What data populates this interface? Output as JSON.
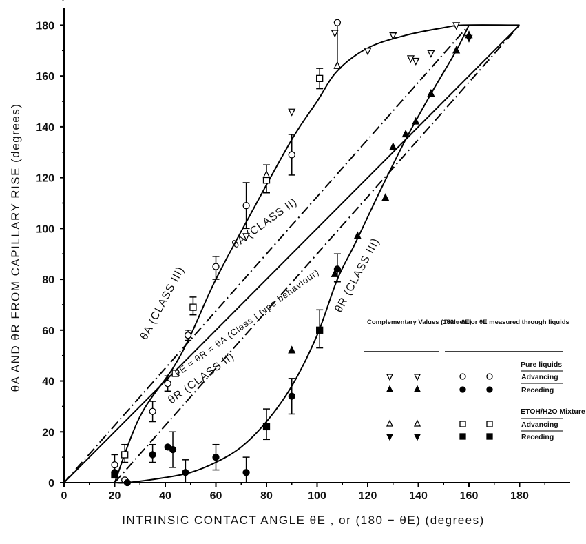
{
  "chart_data": {
    "type": "scatter",
    "xlabel": "INTRINSIC CONTACT ANGLE θE , or (180 − θE) (degrees)",
    "ylabel": "θA AND θR FROM CAPILLARY RISE (degrees)",
    "xlim": [
      0,
      200
    ],
    "ylim": [
      0,
      185
    ],
    "xticks": [
      "0",
      "20",
      "40",
      "60",
      "80",
      "100",
      "120",
      "140",
      "160",
      "180"
    ],
    "yticks": [
      "0",
      "20",
      "40",
      "60",
      "80",
      "100",
      "120",
      "140",
      "160",
      "180"
    ],
    "grid": false,
    "curve_labels": [
      "θA (CLASS III)",
      "θA (CLASS II)",
      "θE = θR = θA (Class I type behaviour)",
      "θR (CLASS II)",
      "θR (CLASS III)"
    ],
    "lines": [
      {
        "name": "θE = θR = θA (Class I type behaviour)",
        "style": "solid",
        "x": [
          0,
          180
        ],
        "y": [
          0,
          180
        ]
      },
      {
        "name": "θA (CLASS II)",
        "style": "dashdot",
        "x": [
          0,
          160
        ],
        "y": [
          0,
          180
        ]
      },
      {
        "name": "θR (CLASS II)",
        "style": "dashdot",
        "x": [
          20,
          180
        ],
        "y": [
          0,
          180
        ]
      },
      {
        "name": "θA (CLASS III)",
        "style": "solid",
        "x": [
          20,
          30,
          43,
          50,
          60,
          75,
          90,
          100,
          108,
          120,
          135,
          150,
          158,
          180
        ],
        "y": [
          0,
          26,
          45,
          58,
          80,
          108,
          135,
          150,
          162,
          171,
          176,
          179,
          180,
          180
        ]
      },
      {
        "name": "θR (CLASS III)",
        "style": "solid",
        "x": [
          20,
          25,
          40,
          50,
          60,
          70,
          80,
          90,
          100,
          108,
          115,
          125,
          135,
          145,
          155,
          160
        ],
        "y": [
          0,
          0,
          2,
          4,
          8,
          14,
          24,
          38,
          58,
          80,
          94,
          115,
          135,
          153,
          170,
          180
        ]
      }
    ],
    "series": [
      {
        "name": "Pure liquids Advancing",
        "marker": "open-circle",
        "points": [
          [
            20,
            7
          ],
          [
            24,
            1
          ],
          [
            35,
            28
          ],
          [
            41,
            39
          ],
          [
            49,
            58
          ],
          [
            60,
            85
          ],
          [
            72,
            109
          ],
          [
            90,
            129
          ],
          [
            108,
            181
          ]
        ]
      },
      {
        "name": "Pure liquids Receding",
        "marker": "filled-circle",
        "points": [
          [
            20,
            4
          ],
          [
            25,
            0
          ],
          [
            35,
            11
          ],
          [
            41,
            14
          ],
          [
            43,
            13
          ],
          [
            48,
            4
          ],
          [
            60,
            10
          ],
          [
            72,
            4
          ],
          [
            90,
            34
          ],
          [
            108,
            84
          ]
        ]
      },
      {
        "name": "ETOH/H2O Mixture Advancing",
        "marker": "open-square",
        "points": [
          [
            24,
            11
          ],
          [
            44,
            43
          ],
          [
            51,
            69
          ],
          [
            80,
            119
          ],
          [
            101,
            159
          ]
        ]
      },
      {
        "name": "ETOH/H2O Mixture Receding",
        "marker": "filled-square",
        "points": [
          [
            20,
            3
          ],
          [
            80,
            22
          ],
          [
            101,
            60
          ]
        ]
      },
      {
        "name": "Complementary Advancing (open down triangle)",
        "marker": "open-triangle-down",
        "points": [
          [
            72,
            97
          ],
          [
            90,
            146
          ],
          [
            107,
            177
          ],
          [
            120,
            170
          ],
          [
            130,
            176
          ],
          [
            137,
            167
          ],
          [
            139,
            166
          ],
          [
            145,
            169
          ],
          [
            155,
            180
          ]
        ]
      },
      {
        "name": "Complementary Receding (filled up triangle)",
        "marker": "filled-triangle-up",
        "points": [
          [
            90,
            52
          ],
          [
            107,
            82
          ],
          [
            116,
            97
          ],
          [
            127,
            112
          ],
          [
            130,
            132
          ],
          [
            135,
            137
          ],
          [
            139,
            142
          ],
          [
            145,
            153
          ],
          [
            155,
            170
          ],
          [
            160,
            176
          ]
        ]
      },
      {
        "name": "Complementary Advancing (open up triangle)",
        "marker": "open-triangle-up",
        "points": [
          [
            80,
            121
          ],
          [
            108,
            164
          ]
        ]
      },
      {
        "name": "Complementary Receding (filled down triangle)",
        "marker": "filled-triangle-down",
        "points": [
          [
            160,
            175
          ]
        ]
      }
    ],
    "error_bars": [
      {
        "x": 20,
        "y": 7,
        "lo": 3,
        "hi": 11
      },
      {
        "x": 24,
        "y": 11,
        "lo": 8,
        "hi": 15
      },
      {
        "x": 35,
        "y": 28,
        "lo": 24,
        "hi": 32
      },
      {
        "x": 35,
        "y": 11,
        "lo": 8,
        "hi": 15
      },
      {
        "x": 41,
        "y": 39,
        "lo": 36,
        "hi": 42
      },
      {
        "x": 43,
        "y": 13,
        "lo": 6,
        "hi": 20
      },
      {
        "x": 48,
        "y": 4,
        "lo": 0,
        "hi": 9
      },
      {
        "x": 49,
        "y": 58,
        "lo": 56,
        "hi": 60
      },
      {
        "x": 51,
        "y": 69,
        "lo": 66,
        "hi": 73
      },
      {
        "x": 60,
        "y": 85,
        "lo": 80,
        "hi": 89
      },
      {
        "x": 60,
        "y": 10,
        "lo": 5,
        "hi": 15
      },
      {
        "x": 72,
        "y": 109,
        "lo": 100,
        "hi": 118
      },
      {
        "x": 72,
        "y": 4,
        "lo": 0,
        "hi": 10
      },
      {
        "x": 80,
        "y": 119,
        "lo": 114,
        "hi": 125
      },
      {
        "x": 80,
        "y": 22,
        "lo": 17,
        "hi": 29
      },
      {
        "x": 90,
        "y": 129,
        "lo": 121,
        "hi": 137
      },
      {
        "x": 90,
        "y": 34,
        "lo": 27,
        "hi": 41
      },
      {
        "x": 101,
        "y": 159,
        "lo": 155,
        "hi": 163
      },
      {
        "x": 101,
        "y": 60,
        "lo": 53,
        "hi": 68
      },
      {
        "x": 108,
        "y": 181,
        "lo": 163,
        "hi": 181
      },
      {
        "x": 108,
        "y": 84,
        "lo": 79,
        "hi": 90
      }
    ],
    "legend": {
      "placement": "lower-right",
      "col_headers": [
        "Complementary Values (180 − θE)",
        "Values for θE measured through liquids"
      ],
      "group1": "Pure liquids",
      "group2": "ETOH/H2O Mixture",
      "rows": [
        {
          "label": "Advancing",
          "left": "open-triangle-down",
          "right": "open-circle"
        },
        {
          "label": "Receding",
          "left": "filled-triangle-up",
          "right": "filled-circle"
        },
        {
          "label": "Advancing",
          "left": "open-triangle-up",
          "right": "open-square"
        },
        {
          "label": "Receding",
          "left": "filled-triangle-down",
          "right": "filled-square"
        }
      ]
    }
  }
}
